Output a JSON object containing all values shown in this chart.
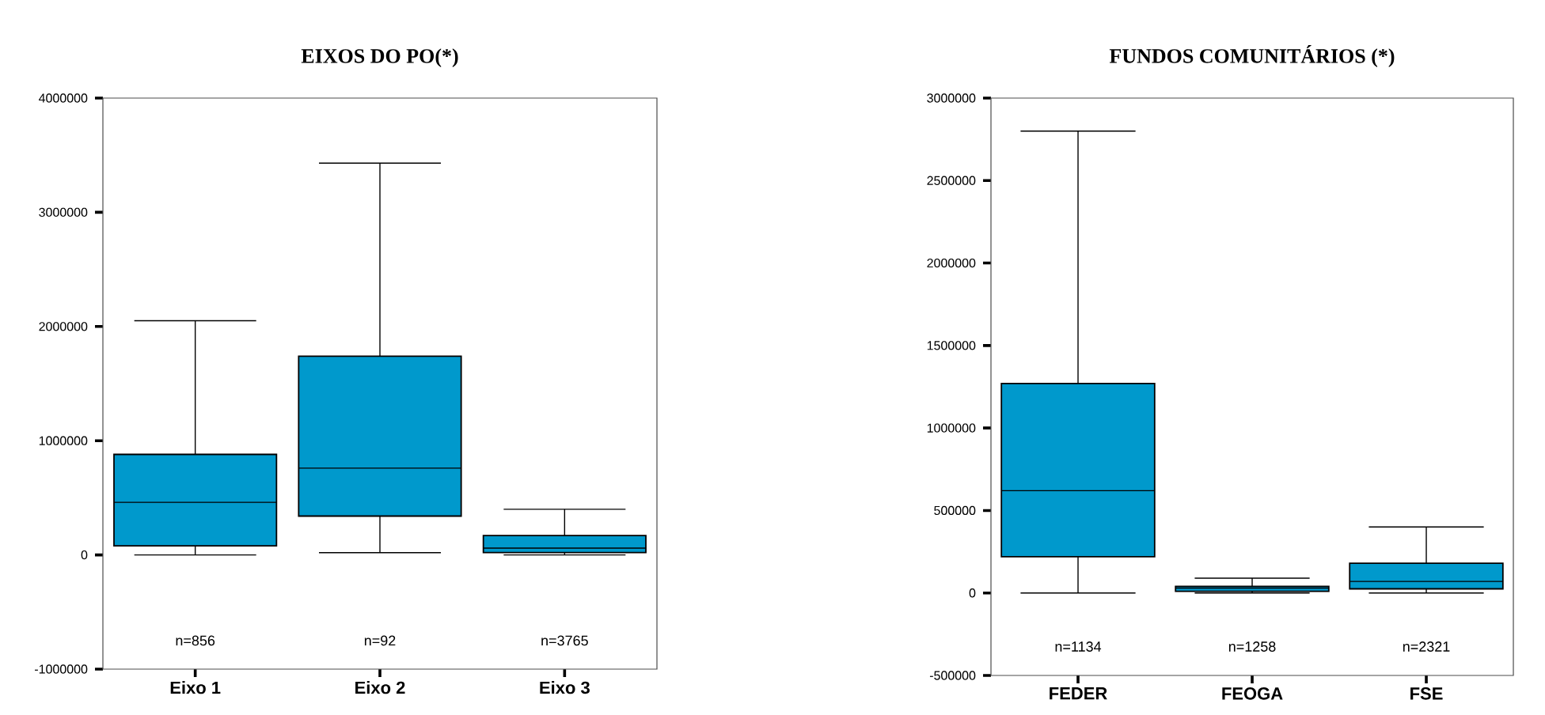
{
  "chart_data": [
    {
      "type": "box",
      "title": "EIXOS DO PO(*)",
      "categories": [
        "Eixo 1",
        "Eixo 2",
        "Eixo 3"
      ],
      "color": "#0099cc",
      "boxes": [
        {
          "low": 0,
          "q1": 80000,
          "median": 460000,
          "q3": 880000,
          "high": 2050000
        },
        {
          "low": 20000,
          "q1": 340000,
          "median": 760000,
          "q3": 1740000,
          "high": 3430000
        },
        {
          "low": 0,
          "q1": 20000,
          "median": 60000,
          "q3": 170000,
          "high": 400000
        }
      ],
      "ylim": [
        -1000000,
        4000000
      ],
      "yticks": [
        -1000000,
        0,
        1000000,
        2000000,
        3000000,
        4000000
      ],
      "grid": false,
      "annotations": [
        "n=856",
        "n=92",
        "n=3765"
      ]
    },
    {
      "type": "box",
      "title": "FUNDOS COMUNITÁRIOS (*)",
      "categories": [
        "FEDER",
        "FEOGA",
        "FSE"
      ],
      "color": "#0099cc",
      "boxes": [
        {
          "low": 0,
          "q1": 220000,
          "median": 620000,
          "q3": 1270000,
          "high": 2800000
        },
        {
          "low": 0,
          "q1": 10000,
          "median": 30000,
          "q3": 40000,
          "high": 90000
        },
        {
          "low": 0,
          "q1": 25000,
          "median": 70000,
          "q3": 180000,
          "high": 400000
        }
      ],
      "ylim": [
        -500000,
        3000000
      ],
      "yticks": [
        -500000,
        0,
        500000,
        1000000,
        1500000,
        2000000,
        2500000,
        3000000
      ],
      "grid": false,
      "annotations": [
        "n=1134",
        "n=1258",
        "n=2321"
      ]
    }
  ]
}
